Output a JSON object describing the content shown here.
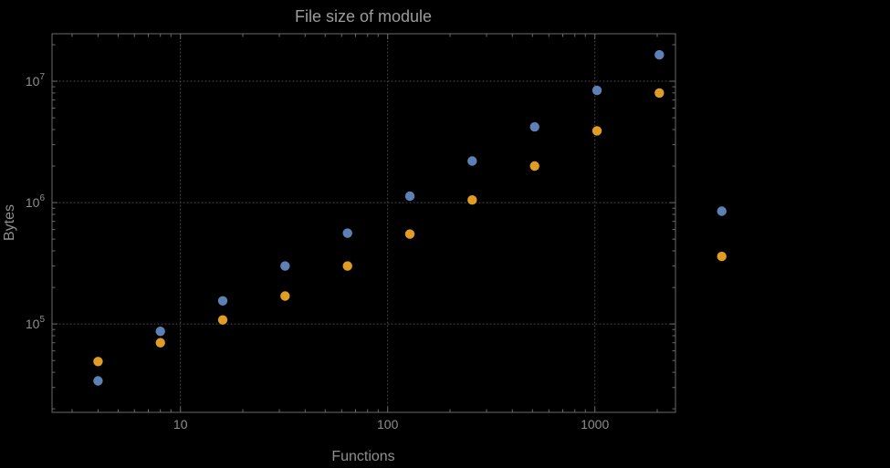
{
  "chart_data": {
    "type": "scatter",
    "title": "File size of module",
    "xlabel": "Functions",
    "ylabel": "Bytes",
    "x_scale": "log",
    "y_scale": "log",
    "grid": "dotted gridlines at decade ticks",
    "legend": "none",
    "xlim": [
      2.4,
      2450
    ],
    "ylim": [
      18700,
      24600000
    ],
    "x_ticks": [
      10,
      100,
      1000
    ],
    "x_tick_labels": [
      "10",
      "100",
      "1000"
    ],
    "y_ticks": [
      100000,
      1000000,
      10000000
    ],
    "y_tick_labels": [
      "10^5",
      "10^6",
      "10^7"
    ],
    "y_tick_exponents": [
      5,
      6,
      7
    ],
    "x": [
      4,
      8,
      16,
      32,
      64,
      128,
      256,
      512,
      1024,
      2048,
      4096
    ],
    "series": [
      {
        "name": "blue",
        "color": "#5e81b5",
        "values": [
          34000,
          87000,
          155000,
          300000,
          560000,
          1130000,
          2200000,
          4200000,
          8400000,
          16500000,
          850000
        ]
      },
      {
        "name": "orange",
        "color": "#e19c24",
        "values": [
          49000,
          70000,
          108000,
          170000,
          300000,
          550000,
          1050000,
          2000000,
          3900000,
          8000000,
          360000
        ]
      }
    ]
  },
  "style": {
    "background": "#000000",
    "frame_color": "#6a6a6a",
    "grid_color": "#4d4d4d",
    "text_color": "#8f8f8f",
    "title_color": "#9c9c9c"
  }
}
